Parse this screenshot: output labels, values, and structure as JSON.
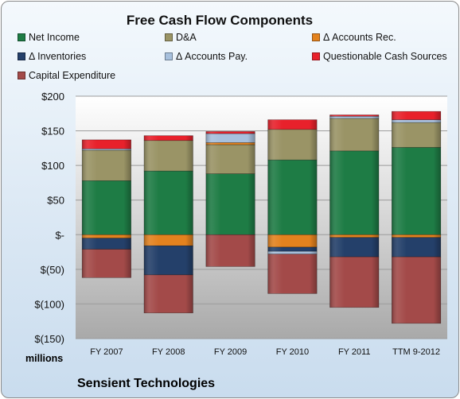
{
  "chart_data": {
    "type": "bar",
    "stacked": true,
    "title": "Free Cash Flow Components",
    "units_label": "millions",
    "company": "Sensient Technologies",
    "categories": [
      "FY 2007",
      "FY 2008",
      "FY 2009",
      "FY 2010",
      "FY 2011",
      "TTM 9-2012"
    ],
    "ylim": [
      -150,
      200
    ],
    "yticks": [
      200,
      150,
      100,
      50,
      0,
      -50,
      -100,
      -150
    ],
    "ytick_labels": [
      "$200",
      "$150",
      "$100",
      "$50",
      "$-",
      "$(50)",
      "$(100)",
      "$(150)"
    ],
    "grid": true,
    "legend_position": "top",
    "series": [
      {
        "name": "Net Income",
        "color": "#1e7c45",
        "values": [
          78,
          92,
          88,
          108,
          121,
          126
        ]
      },
      {
        "name": "D&A",
        "color": "#9a9466",
        "values": [
          44,
          44,
          42,
          44,
          47,
          36
        ]
      },
      {
        "name": "Δ Accounts Rec.",
        "color": "#e3821e",
        "values": [
          -5,
          -16,
          3,
          -18,
          -4,
          -4
        ]
      },
      {
        "name": "Δ Inventories",
        "color": "#24406a",
        "values": [
          -16,
          -42,
          0,
          -6,
          -28,
          -28
        ]
      },
      {
        "name": "Δ Accounts Pay.",
        "color": "#a7c0dd",
        "values": [
          2,
          0,
          13,
          -4,
          3,
          4
        ]
      },
      {
        "name": "Questionable Cash Sources",
        "color": "#e8212b",
        "values": [
          13,
          7,
          3,
          14,
          2,
          12
        ]
      },
      {
        "name": "Capital Expenditure",
        "color": "#a34a49",
        "values": [
          -41,
          -55,
          -46,
          -57,
          -73,
          -96
        ]
      }
    ]
  }
}
